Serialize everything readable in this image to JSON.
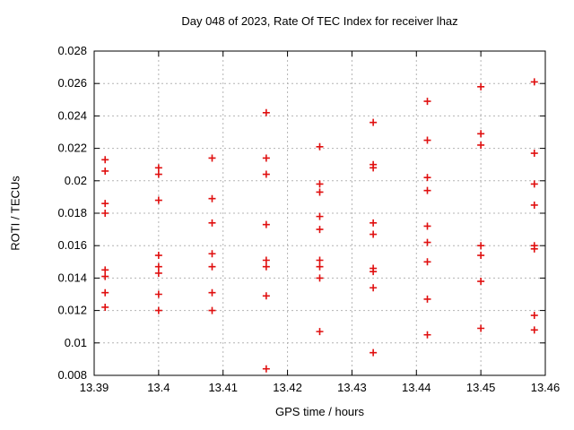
{
  "title": "Day 048 of 2023, Rate Of TEC Index for receiver lhaz",
  "chart_data": {
    "type": "scatter",
    "title": "Day 048 of 2023, Rate Of TEC Index for receiver lhaz",
    "xlabel": "GPS time / hours",
    "ylabel": "ROTI / TECUs",
    "xlim": [
      13.39,
      13.46
    ],
    "ylim": [
      0.008,
      0.028
    ],
    "x_ticks": [
      13.39,
      13.4,
      13.41,
      13.42,
      13.43,
      13.44,
      13.45,
      13.46
    ],
    "x_tick_labels": [
      "13.39",
      "13.4",
      "13.41",
      "13.42",
      "13.43",
      "13.44",
      "13.45",
      "13.46"
    ],
    "y_ticks": [
      0.008,
      0.01,
      0.012,
      0.014,
      0.016,
      0.018,
      0.02,
      0.022,
      0.024,
      0.026,
      0.028
    ],
    "y_tick_labels": [
      "0.008",
      "0.01",
      "0.012",
      "0.014",
      "0.016",
      "0.018",
      "0.02",
      "0.022",
      "0.024",
      "0.026",
      "0.028"
    ],
    "grid": true,
    "legend_position": "none",
    "marker": "plus",
    "marker_color": "#e01010",
    "grid_color": "#b4b4b4",
    "frame_color": "#000000",
    "series": [
      {
        "name": "ROTI",
        "points": [
          [
            13.3917,
            0.0213
          ],
          [
            13.3917,
            0.0206
          ],
          [
            13.3917,
            0.0186
          ],
          [
            13.3917,
            0.018
          ],
          [
            13.3917,
            0.0145
          ],
          [
            13.3917,
            0.0141
          ],
          [
            13.3917,
            0.0131
          ],
          [
            13.3917,
            0.0122
          ],
          [
            13.4,
            0.0208
          ],
          [
            13.4,
            0.0204
          ],
          [
            13.4,
            0.0188
          ],
          [
            13.4,
            0.0154
          ],
          [
            13.4,
            0.0147
          ],
          [
            13.4,
            0.0143
          ],
          [
            13.4,
            0.013
          ],
          [
            13.4,
            0.012
          ],
          [
            13.4083,
            0.0214
          ],
          [
            13.4083,
            0.0189
          ],
          [
            13.4083,
            0.0174
          ],
          [
            13.4083,
            0.0155
          ],
          [
            13.4083,
            0.0147
          ],
          [
            13.4083,
            0.0131
          ],
          [
            13.4083,
            0.012
          ],
          [
            13.4167,
            0.0242
          ],
          [
            13.4167,
            0.0214
          ],
          [
            13.4167,
            0.0204
          ],
          [
            13.4167,
            0.0173
          ],
          [
            13.4167,
            0.0151
          ],
          [
            13.4167,
            0.0147
          ],
          [
            13.4167,
            0.0129
          ],
          [
            13.4167,
            0.0084
          ],
          [
            13.425,
            0.0221
          ],
          [
            13.425,
            0.0198
          ],
          [
            13.425,
            0.0193
          ],
          [
            13.425,
            0.0178
          ],
          [
            13.425,
            0.017
          ],
          [
            13.425,
            0.0151
          ],
          [
            13.425,
            0.0147
          ],
          [
            13.425,
            0.014
          ],
          [
            13.425,
            0.0107
          ],
          [
            13.4333,
            0.0236
          ],
          [
            13.4333,
            0.021
          ],
          [
            13.4333,
            0.0208
          ],
          [
            13.4333,
            0.0174
          ],
          [
            13.4333,
            0.0167
          ],
          [
            13.4333,
            0.0146
          ],
          [
            13.4333,
            0.0144
          ],
          [
            13.4333,
            0.0134
          ],
          [
            13.4333,
            0.0094
          ],
          [
            13.4417,
            0.0249
          ],
          [
            13.4417,
            0.0225
          ],
          [
            13.4417,
            0.0202
          ],
          [
            13.4417,
            0.0194
          ],
          [
            13.4417,
            0.0172
          ],
          [
            13.4417,
            0.0162
          ],
          [
            13.4417,
            0.015
          ],
          [
            13.4417,
            0.0127
          ],
          [
            13.4417,
            0.0105
          ],
          [
            13.45,
            0.0258
          ],
          [
            13.45,
            0.0229
          ],
          [
            13.45,
            0.0222
          ],
          [
            13.45,
            0.016
          ],
          [
            13.45,
            0.0154
          ],
          [
            13.45,
            0.0138
          ],
          [
            13.45,
            0.0109
          ],
          [
            13.4583,
            0.0261
          ],
          [
            13.4583,
            0.0217
          ],
          [
            13.4583,
            0.0198
          ],
          [
            13.4583,
            0.0185
          ],
          [
            13.4583,
            0.016
          ],
          [
            13.4583,
            0.0158
          ],
          [
            13.4583,
            0.0117
          ],
          [
            13.4583,
            0.0108
          ]
        ]
      }
    ]
  }
}
